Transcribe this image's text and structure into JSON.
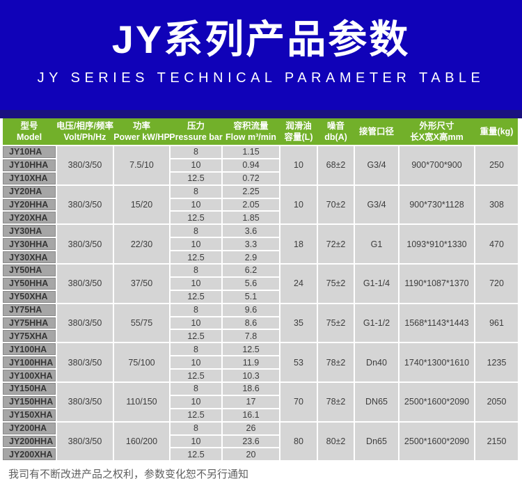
{
  "banner": {
    "title": "JY系列产品参数",
    "subtitle": "JY SERIES TECHNICAL PARAMETER TABLE"
  },
  "table": {
    "headers": [
      {
        "line1": "型号",
        "line2": "Model"
      },
      {
        "line1": "电压/相序/频率",
        "line2": "Volt/Ph/Hz"
      },
      {
        "line1": "功率",
        "line2": "Power kW/HP"
      },
      {
        "line1": "压力",
        "line2": "Pressure bar"
      },
      {
        "line1": "容积流量",
        "line2": "Flow m³/min"
      },
      {
        "line1": "润滑油",
        "line2": "容量(L)"
      },
      {
        "line1": "噪音",
        "line2": "db(A)"
      },
      {
        "line1": "接管口径",
        "line2": ""
      },
      {
        "line1": "外形尺寸",
        "line2": "长X宽X高mm"
      },
      {
        "line1": "重量(kg)",
        "line2": ""
      }
    ],
    "groups": [
      {
        "models": [
          "JY10HA",
          "JY10HHA",
          "JY10XHA"
        ],
        "volt": "380/3/50",
        "power": "7.5/10",
        "pressures": [
          "8",
          "10",
          "12.5"
        ],
        "flows": [
          "1.15",
          "0.94",
          "0.72"
        ],
        "oil": "10",
        "noise": "68±2",
        "port": "G3/4",
        "dims": "900*700*900",
        "weight": "250"
      },
      {
        "models": [
          "JY20HA",
          "JY20HHA",
          "JY20XHA"
        ],
        "volt": "380/3/50",
        "power": "15/20",
        "pressures": [
          "8",
          "10",
          "12.5"
        ],
        "flows": [
          "2.25",
          "2.05",
          "1.85"
        ],
        "oil": "10",
        "noise": "70±2",
        "port": "G3/4",
        "dims": "900*730*1128",
        "weight": "308"
      },
      {
        "models": [
          "JY30HA",
          "JY30HHA",
          "JY30XHA"
        ],
        "volt": "380/3/50",
        "power": "22/30",
        "pressures": [
          "8",
          "10",
          "12.5"
        ],
        "flows": [
          "3.6",
          "3.3",
          "2.9"
        ],
        "oil": "18",
        "noise": "72±2",
        "port": "G1",
        "dims": "1093*910*1330",
        "weight": "470"
      },
      {
        "models": [
          "JY50HA",
          "JY50HHA",
          "JY50XHA"
        ],
        "volt": "380/3/50",
        "power": "37/50",
        "pressures": [
          "8",
          "10",
          "12.5"
        ],
        "flows": [
          "6.2",
          "5.6",
          "5.1"
        ],
        "oil": "24",
        "noise": "75±2",
        "port": "G1-1/4",
        "dims": "1190*1087*1370",
        "weight": "720"
      },
      {
        "models": [
          "JY75HA",
          "JY75HHA",
          "JY75XHA"
        ],
        "volt": "380/3/50",
        "power": "55/75",
        "pressures": [
          "8",
          "10",
          "12.5"
        ],
        "flows": [
          "9.6",
          "8.6",
          "7.8"
        ],
        "oil": "35",
        "noise": "75±2",
        "port": "G1-1/2",
        "dims": "1568*1143*1443",
        "weight": "961"
      },
      {
        "models": [
          "JY100HA",
          "JY100HHA",
          "JY100XHA"
        ],
        "volt": "380/3/50",
        "power": "75/100",
        "pressures": [
          "8",
          "10",
          "12.5"
        ],
        "flows": [
          "12.5",
          "11.9",
          "10.3"
        ],
        "oil": "53",
        "noise": "78±2",
        "port": "Dn40",
        "dims": "1740*1300*1610",
        "weight": "1235"
      },
      {
        "models": [
          "JY150HA",
          "JY150HHA",
          "JY150XHA"
        ],
        "volt": "380/3/50",
        "power": "110/150",
        "pressures": [
          "8",
          "10",
          "12.5"
        ],
        "flows": [
          "18.6",
          "17",
          "16.1"
        ],
        "oil": "70",
        "noise": "78±2",
        "port": "DN65",
        "dims": "2500*1600*2090",
        "weight": "2050"
      },
      {
        "models": [
          "JY200HA",
          "JY200HHA",
          "JY200XHA"
        ],
        "volt": "380/3/50",
        "power": "160/200",
        "pressures": [
          "8",
          "10",
          "12.5"
        ],
        "flows": [
          "26",
          "23.6",
          "20"
        ],
        "oil": "80",
        "noise": "80±2",
        "port": "Dn65",
        "dims": "2500*1600*2090",
        "weight": "2150"
      }
    ]
  },
  "footer": {
    "note": "我司有不断改进产品之权利，参数变化恕不另行通知"
  },
  "colors": {
    "banner_blue": "#1002b8",
    "banner_navy": "#1a1180",
    "header_green": "#72b02a",
    "model_cell_bg": "#a6a6a6",
    "data_cell_bg": "#d5d5d5",
    "text_dark": "#3c3c3c"
  }
}
